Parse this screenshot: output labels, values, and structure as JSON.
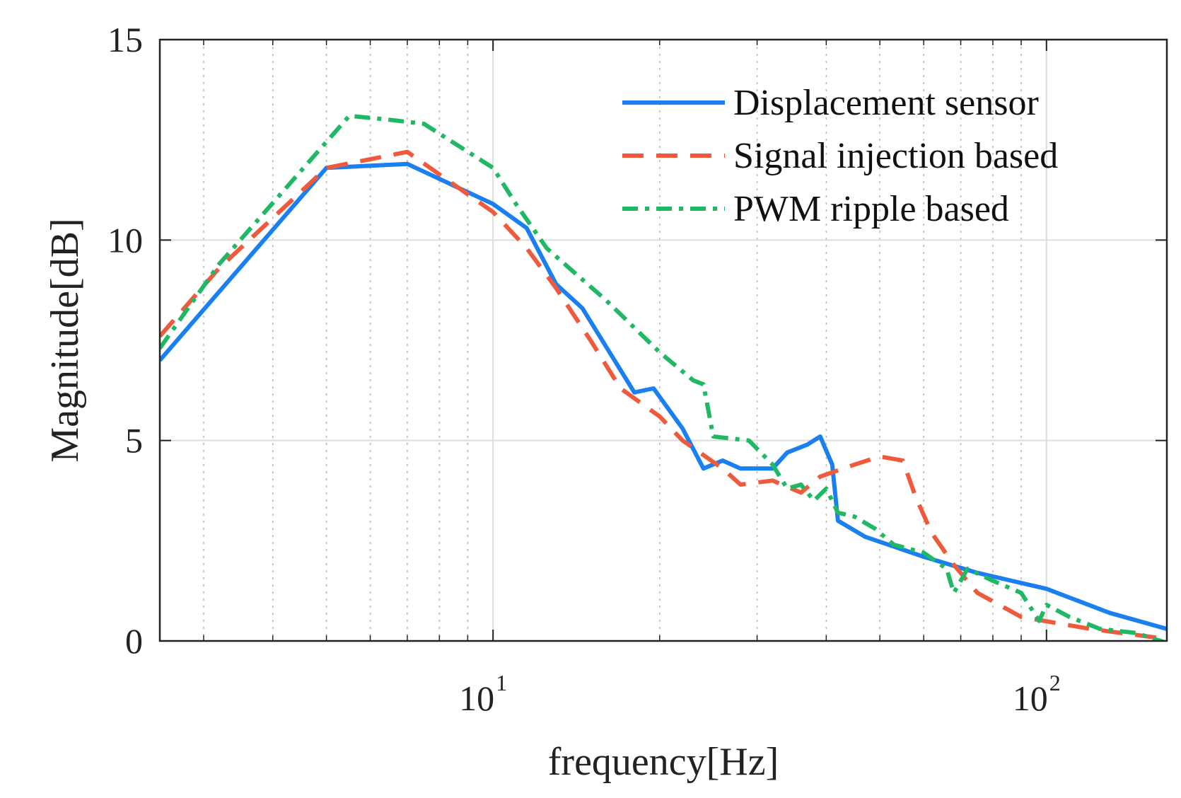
{
  "chart_data": {
    "type": "line",
    "title": "",
    "xlabel": "frequency[Hz]",
    "ylabel": "Magnitude[dB]",
    "xscale": "log",
    "xlim": [
      2.5,
      165
    ],
    "ylim": [
      0,
      15
    ],
    "yticks": [
      0,
      5,
      10,
      15
    ],
    "ytick_labels": [
      "0",
      "5",
      "10",
      "15"
    ],
    "xticks": [
      {
        "value": 10,
        "base": "10",
        "exp": "1"
      },
      {
        "value": 100,
        "base": "10",
        "exp": "2"
      }
    ],
    "grid": true,
    "legend_position": "top-right",
    "series": [
      {
        "name": "Displacement sensor",
        "color": "#1a7ff0",
        "style": "solid",
        "points": [
          [
            2.5,
            7.0
          ],
          [
            5,
            11.8
          ],
          [
            7,
            11.9
          ],
          [
            10,
            10.9
          ],
          [
            11.5,
            10.3
          ],
          [
            13,
            8.9
          ],
          [
            14.5,
            8.3
          ],
          [
            18,
            6.2
          ],
          [
            19.5,
            6.3
          ],
          [
            22,
            5.3
          ],
          [
            24,
            4.3
          ],
          [
            26,
            4.5
          ],
          [
            28,
            4.3
          ],
          [
            32,
            4.3
          ],
          [
            34,
            4.7
          ],
          [
            37,
            4.9
          ],
          [
            39,
            5.1
          ],
          [
            41,
            4.4
          ],
          [
            42,
            3.0
          ],
          [
            47,
            2.6
          ],
          [
            60,
            2.1
          ],
          [
            75,
            1.7
          ],
          [
            100,
            1.3
          ],
          [
            130,
            0.7
          ],
          [
            165,
            0.3
          ]
        ]
      },
      {
        "name": "Signal injection based",
        "color": "#f05a3c",
        "style": "dashed",
        "points": [
          [
            2.5,
            7.6
          ],
          [
            3.2,
            9.3
          ],
          [
            5,
            11.8
          ],
          [
            7,
            12.2
          ],
          [
            10,
            10.7
          ],
          [
            11.5,
            9.8
          ],
          [
            13,
            8.8
          ],
          [
            15,
            7.5
          ],
          [
            17,
            6.3
          ],
          [
            20,
            5.6
          ],
          [
            22,
            5.0
          ],
          [
            26,
            4.3
          ],
          [
            28,
            3.9
          ],
          [
            32,
            4.0
          ],
          [
            36,
            3.7
          ],
          [
            39,
            4.1
          ],
          [
            45,
            4.4
          ],
          [
            50,
            4.6
          ],
          [
            55,
            4.5
          ],
          [
            58,
            3.6
          ],
          [
            62,
            2.7
          ],
          [
            68,
            1.9
          ],
          [
            75,
            1.2
          ],
          [
            90,
            0.6
          ],
          [
            120,
            0.3
          ],
          [
            165,
            0.05
          ]
        ]
      },
      {
        "name": "PWM ripple based",
        "color": "#1fb864",
        "style": "dashdot",
        "points": [
          [
            2.5,
            7.3
          ],
          [
            3.2,
            9.4
          ],
          [
            5.5,
            13.1
          ],
          [
            6.5,
            13.0
          ],
          [
            7.5,
            12.9
          ],
          [
            10,
            11.8
          ],
          [
            11,
            10.9
          ],
          [
            12.5,
            9.8
          ],
          [
            14,
            9.2
          ],
          [
            16,
            8.5
          ],
          [
            20,
            7.2
          ],
          [
            23,
            6.5
          ],
          [
            24,
            6.4
          ],
          [
            25,
            5.1
          ],
          [
            29,
            5.0
          ],
          [
            32,
            4.4
          ],
          [
            34,
            3.8
          ],
          [
            36,
            3.9
          ],
          [
            38,
            3.5
          ],
          [
            40,
            3.8
          ],
          [
            42,
            3.2
          ],
          [
            45,
            3.1
          ],
          [
            49,
            2.8
          ],
          [
            53,
            2.4
          ],
          [
            60,
            2.2
          ],
          [
            66,
            1.8
          ],
          [
            68,
            1.2
          ],
          [
            72,
            1.8
          ],
          [
            80,
            1.5
          ],
          [
            90,
            1.2
          ],
          [
            97,
            0.5
          ],
          [
            100,
            0.9
          ],
          [
            110,
            0.6
          ],
          [
            125,
            0.3
          ],
          [
            145,
            0.2
          ],
          [
            165,
            -0.05
          ]
        ]
      }
    ]
  }
}
